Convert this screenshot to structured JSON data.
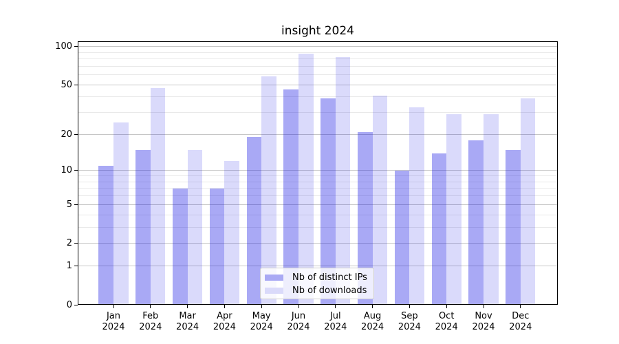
{
  "title": "insight 2024",
  "chart_data": {
    "type": "bar",
    "title": "insight 2024",
    "categories": [
      "Jan",
      "Feb",
      "Mar",
      "Apr",
      "May",
      "Jun",
      "Jul",
      "Aug",
      "Sep",
      "Oct",
      "Nov",
      "Dec"
    ],
    "year_label": "2024",
    "x_tick_labels": [
      "Jan 2024",
      "Feb 2024",
      "Mar 2024",
      "Apr 2024",
      "May 2024",
      "Jun 2024",
      "Jul 2024",
      "Aug 2024",
      "Sep 2024",
      "Oct 2024",
      "Nov 2024",
      "Dec 2024"
    ],
    "series": [
      {
        "name": "Nb of distinct IPs",
        "color_rgba": "rgba(10,10,225,0.35)",
        "color_hex": "#a9a9f4",
        "values": [
          11,
          15,
          7,
          7,
          19,
          46,
          39,
          21,
          10,
          14,
          18,
          15
        ]
      },
      {
        "name": "Nb of downloads",
        "color_rgba": "rgba(10,10,225,0.15)",
        "color_hex": "#dadafa",
        "values": [
          25,
          47,
          15,
          12,
          58,
          88,
          83,
          41,
          33,
          29,
          29,
          39
        ]
      }
    ],
    "yscale": "log10(value+1)",
    "y_major_ticks": [
      0,
      1,
      2,
      5,
      10,
      20,
      50,
      100
    ],
    "y_minor_gridlines": [
      3,
      4,
      6,
      7,
      8,
      9,
      30,
      40,
      60,
      70,
      80,
      90
    ],
    "ylim": [
      0,
      110
    ],
    "xlabel": "",
    "ylabel": "",
    "grid": "on",
    "legend_position": "lower center",
    "colors": {
      "grid_major": "#c6c6c6",
      "grid_minor": "#e9e9e9",
      "axis_frame": "#000000",
      "legend_border": "#cccccc",
      "text": "#000000"
    }
  }
}
